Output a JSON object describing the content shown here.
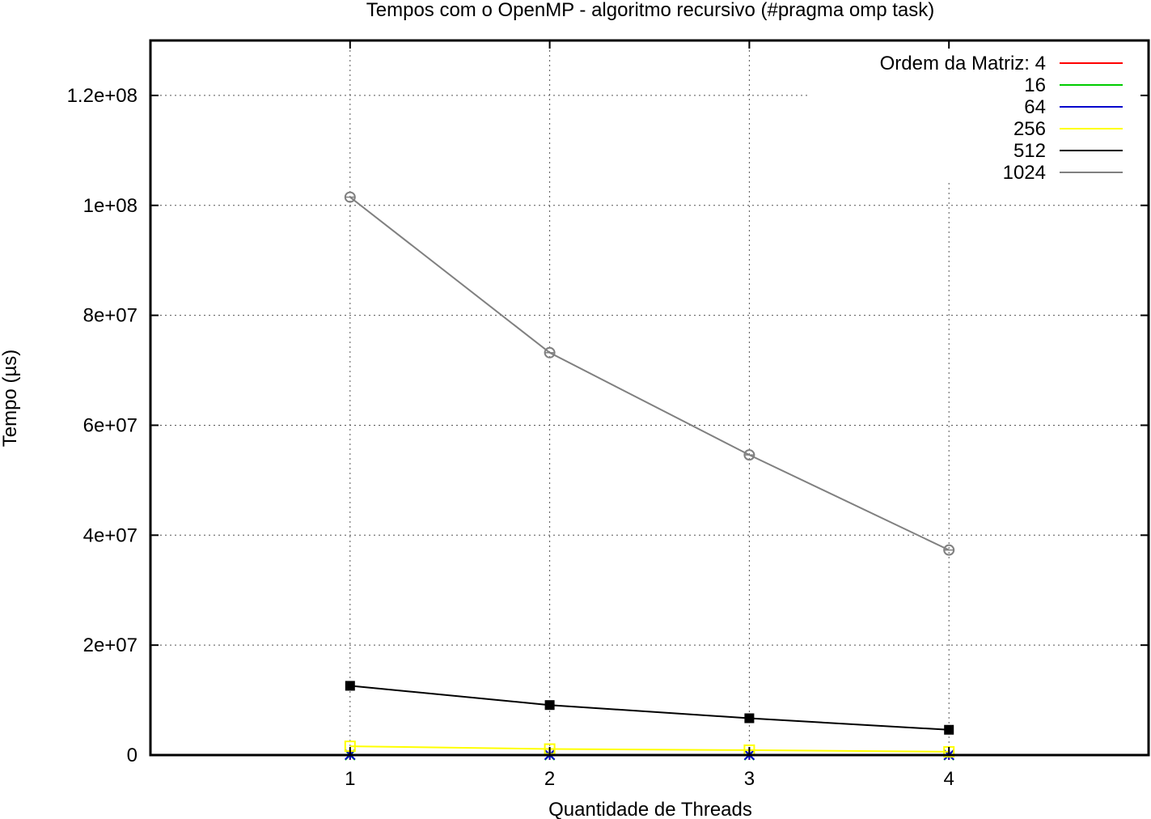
{
  "chart_data": {
    "type": "line",
    "title": "Tempos com o OpenMP - algoritmo recursivo (#pragma omp task)",
    "xlabel": "Quantidade de Threads",
    "ylabel": "Tempo (µs)",
    "xlim": [
      0,
      5
    ],
    "ylim": [
      0,
      130000000
    ],
    "x_ticks": [
      1,
      2,
      3,
      4
    ],
    "x_tick_labels": [
      "1",
      "2",
      "3",
      "4"
    ],
    "y_ticks": [
      0,
      20000000,
      40000000,
      60000000,
      80000000,
      100000000,
      120000000
    ],
    "y_tick_labels": [
      "0",
      "2e+07",
      "4e+07",
      "6e+07",
      "8e+07",
      "1e+08",
      "1.2e+08"
    ],
    "grid": true,
    "legend_position": "top-right",
    "x": [
      1,
      2,
      3,
      4
    ],
    "series": [
      {
        "name": "Ordem da Matriz: 4",
        "color": "#ff0000",
        "marker": "plus",
        "values": [
          0,
          0,
          0,
          0
        ]
      },
      {
        "name": "16",
        "color": "#00cc00",
        "marker": "cross",
        "values": [
          0,
          0,
          0,
          0
        ]
      },
      {
        "name": "64",
        "color": "#0000cc",
        "marker": "star",
        "values": [
          80000,
          60000,
          50000,
          40000
        ]
      },
      {
        "name": "256",
        "color": "#ffff00",
        "marker": "square-open",
        "values": [
          1600000,
          1100000,
          900000,
          600000
        ]
      },
      {
        "name": "512",
        "color": "#000000",
        "marker": "square-filled",
        "values": [
          12600000,
          9100000,
          6700000,
          4600000
        ]
      },
      {
        "name": "1024",
        "color": "#808080",
        "marker": "circle-open",
        "values": [
          101500000,
          73200000,
          54600000,
          37300000
        ]
      }
    ]
  }
}
